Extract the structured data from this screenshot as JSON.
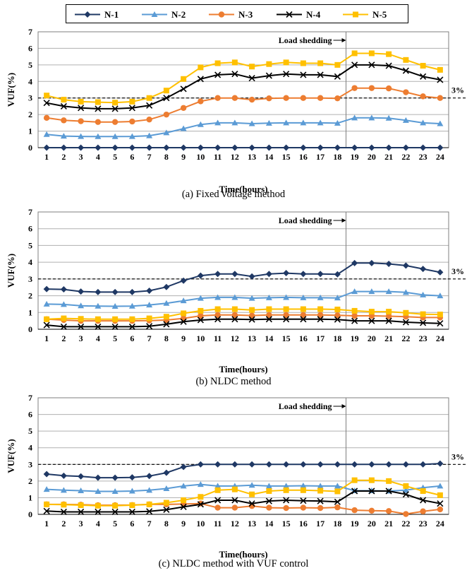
{
  "legend": {
    "items": [
      {
        "name": "N-1",
        "color": "#1f3864",
        "marker": "diamond"
      },
      {
        "name": "N-2",
        "color": "#5b9bd5",
        "marker": "triangle"
      },
      {
        "name": "N-3",
        "color": "#ed7d31",
        "marker": "circle"
      },
      {
        "name": "N-4",
        "color": "#000000",
        "marker": "x"
      },
      {
        "name": "N-5",
        "color": "#ffc000",
        "marker": "square"
      }
    ]
  },
  "chart_data": [
    {
      "type": "line",
      "caption": "(a) Fixed voltage method",
      "xlabel": "Time(hours)",
      "ylabel": "VUF(%)",
      "x": [
        1,
        2,
        3,
        4,
        5,
        6,
        7,
        8,
        9,
        10,
        11,
        12,
        13,
        14,
        15,
        16,
        17,
        18,
        19,
        20,
        21,
        22,
        23,
        24
      ],
      "ylim": [
        0,
        7
      ],
      "yticks": [
        0,
        1,
        2,
        3,
        4,
        5,
        6,
        7
      ],
      "grid": true,
      "threshold": {
        "value": 3,
        "label": "3%"
      },
      "annotation": {
        "text": "Load shedding",
        "x": 19
      },
      "series": [
        {
          "name": "N-1",
          "values": [
            0,
            0,
            0,
            0,
            0,
            0,
            0,
            0,
            0,
            0,
            0,
            0,
            0,
            0,
            0,
            0,
            0,
            0,
            0,
            0,
            0,
            0,
            0,
            0
          ]
        },
        {
          "name": "N-2",
          "values": [
            0.8,
            0.7,
            0.68,
            0.67,
            0.67,
            0.68,
            0.72,
            0.9,
            1.15,
            1.4,
            1.5,
            1.5,
            1.45,
            1.48,
            1.5,
            1.5,
            1.5,
            1.48,
            1.8,
            1.8,
            1.78,
            1.65,
            1.5,
            1.45
          ]
        },
        {
          "name": "N-3",
          "values": [
            1.8,
            1.65,
            1.6,
            1.55,
            1.55,
            1.58,
            1.7,
            2.0,
            2.4,
            2.8,
            3.0,
            3.0,
            2.9,
            2.98,
            3.0,
            3.0,
            3.0,
            2.98,
            3.6,
            3.6,
            3.58,
            3.35,
            3.1,
            3.0
          ]
        },
        {
          "name": "N-4",
          "values": [
            2.7,
            2.5,
            2.4,
            2.35,
            2.35,
            2.4,
            2.55,
            3.0,
            3.55,
            4.15,
            4.4,
            4.45,
            4.2,
            4.35,
            4.45,
            4.4,
            4.4,
            4.3,
            5.0,
            5.0,
            4.95,
            4.65,
            4.3,
            4.1
          ]
        },
        {
          "name": "N-5",
          "values": [
            3.15,
            2.9,
            2.78,
            2.75,
            2.72,
            2.78,
            3.0,
            3.45,
            4.15,
            4.85,
            5.1,
            5.15,
            4.9,
            5.05,
            5.15,
            5.1,
            5.1,
            5.0,
            5.7,
            5.7,
            5.65,
            5.3,
            4.95,
            4.7
          ]
        }
      ]
    },
    {
      "type": "line",
      "caption": "(b) NLDC method",
      "xlabel": "Time(hours)",
      "ylabel": "VUF(%)",
      "x": [
        1,
        2,
        3,
        4,
        5,
        6,
        7,
        8,
        9,
        10,
        11,
        12,
        13,
        14,
        15,
        16,
        17,
        18,
        19,
        20,
        21,
        22,
        23,
        24
      ],
      "ylim": [
        0,
        7
      ],
      "yticks": [
        0,
        1,
        2,
        3,
        4,
        5,
        6,
        7
      ],
      "grid": true,
      "threshold": {
        "value": 3,
        "label": "3%"
      },
      "annotation": {
        "text": "Load shedding",
        "x": 19
      },
      "series": [
        {
          "name": "N-1",
          "values": [
            2.4,
            2.38,
            2.25,
            2.22,
            2.22,
            2.22,
            2.3,
            2.52,
            2.9,
            3.2,
            3.3,
            3.3,
            3.15,
            3.3,
            3.35,
            3.3,
            3.3,
            3.28,
            3.95,
            3.95,
            3.9,
            3.8,
            3.6,
            3.4
          ]
        },
        {
          "name": "N-2",
          "values": [
            1.5,
            1.48,
            1.4,
            1.38,
            1.37,
            1.38,
            1.45,
            1.55,
            1.7,
            1.85,
            1.9,
            1.9,
            1.85,
            1.88,
            1.9,
            1.88,
            1.88,
            1.87,
            2.25,
            2.25,
            2.25,
            2.2,
            2.05,
            2.0
          ]
        },
        {
          "name": "N-3",
          "values": [
            0.6,
            0.55,
            0.5,
            0.5,
            0.5,
            0.5,
            0.52,
            0.55,
            0.65,
            0.8,
            0.85,
            0.85,
            0.82,
            0.85,
            0.85,
            0.85,
            0.85,
            0.83,
            0.8,
            0.8,
            0.78,
            0.75,
            0.7,
            0.7
          ]
        },
        {
          "name": "N-4",
          "values": [
            0.25,
            0.15,
            0.15,
            0.15,
            0.15,
            0.15,
            0.18,
            0.3,
            0.45,
            0.55,
            0.6,
            0.6,
            0.58,
            0.6,
            0.6,
            0.6,
            0.6,
            0.58,
            0.5,
            0.5,
            0.5,
            0.42,
            0.38,
            0.35
          ]
        },
        {
          "name": "N-5",
          "values": [
            0.6,
            0.65,
            0.62,
            0.6,
            0.6,
            0.6,
            0.65,
            0.75,
            0.95,
            1.1,
            1.2,
            1.2,
            1.15,
            1.2,
            1.2,
            1.2,
            1.2,
            1.18,
            1.1,
            1.05,
            1.05,
            0.98,
            0.9,
            0.88
          ]
        }
      ]
    },
    {
      "type": "line",
      "caption": "(c) NLDC method with VUF control",
      "xlabel": "Time(hours)",
      "ylabel": "VUF(%)",
      "x": [
        1,
        2,
        3,
        4,
        5,
        6,
        7,
        8,
        9,
        10,
        11,
        12,
        13,
        14,
        15,
        16,
        17,
        18,
        19,
        20,
        21,
        22,
        23,
        24
      ],
      "ylim": [
        0,
        7
      ],
      "yticks": [
        0,
        1,
        2,
        3,
        4,
        5,
        6,
        7
      ],
      "grid": true,
      "threshold": {
        "value": 3,
        "label": "3%"
      },
      "annotation": {
        "text": "Load shedding",
        "x": 19
      },
      "series": [
        {
          "name": "N-1",
          "values": [
            2.42,
            2.32,
            2.28,
            2.2,
            2.2,
            2.22,
            2.3,
            2.5,
            2.85,
            3.0,
            3.0,
            3.0,
            3.0,
            3.0,
            3.0,
            3.0,
            3.0,
            3.0,
            3.0,
            3.0,
            3.0,
            3.0,
            3.0,
            3.05
          ]
        },
        {
          "name": "N-2",
          "values": [
            1.5,
            1.45,
            1.42,
            1.38,
            1.38,
            1.4,
            1.45,
            1.55,
            1.7,
            1.8,
            1.7,
            1.7,
            1.75,
            1.7,
            1.7,
            1.72,
            1.7,
            1.7,
            1.42,
            1.42,
            1.4,
            1.45,
            1.6,
            1.7
          ]
        },
        {
          "name": "N-3",
          "values": [
            0.6,
            0.6,
            0.58,
            0.55,
            0.55,
            0.56,
            0.6,
            0.6,
            0.62,
            0.65,
            0.4,
            0.4,
            0.5,
            0.4,
            0.38,
            0.4,
            0.38,
            0.42,
            0.25,
            0.22,
            0.2,
            0.02,
            0.18,
            0.3
          ]
        },
        {
          "name": "N-4",
          "values": [
            0.2,
            0.15,
            0.15,
            0.15,
            0.15,
            0.15,
            0.18,
            0.28,
            0.45,
            0.6,
            0.85,
            0.85,
            0.65,
            0.8,
            0.85,
            0.82,
            0.8,
            0.75,
            1.4,
            1.4,
            1.4,
            1.2,
            0.85,
            0.65
          ]
        },
        {
          "name": "N-5",
          "values": [
            0.6,
            0.58,
            0.55,
            0.52,
            0.52,
            0.55,
            0.6,
            0.7,
            0.85,
            1.05,
            1.45,
            1.5,
            1.2,
            1.4,
            1.45,
            1.45,
            1.42,
            1.38,
            2.05,
            2.05,
            2.0,
            1.7,
            1.4,
            1.15
          ]
        }
      ]
    }
  ]
}
